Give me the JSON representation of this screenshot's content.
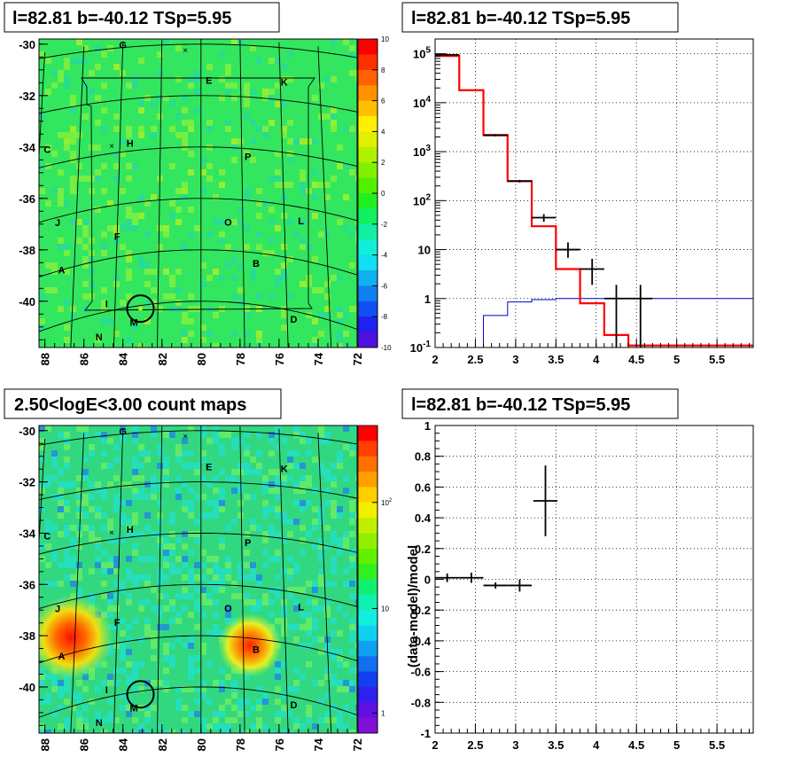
{
  "panels": {
    "tl": {
      "title": "l=82.81 b=-40.12 TSp=5.95"
    },
    "tr": {
      "title": "l=82.81 b=-40.12 TSp=5.95"
    },
    "bl": {
      "title": "2.50<logE<3.00 count maps"
    },
    "br": {
      "title": "l=82.81 b=-40.12 TSp=5.95",
      "ylabel": "(data-model)/model"
    }
  },
  "map_axes": {
    "x_ticks": [
      "88",
      "86",
      "84",
      "82",
      "80",
      "78",
      "76",
      "74",
      "72"
    ],
    "y_ticks": [
      "-30",
      "-32",
      "-34",
      "-36",
      "-38",
      "-40"
    ]
  },
  "source_labels": [
    {
      "id": "G",
      "l": 84.0,
      "b": -29.9
    },
    {
      "id": "E",
      "l": 79.6,
      "b": -31.4
    },
    {
      "id": "K",
      "l": 75.8,
      "b": -31.3
    },
    {
      "id": "C",
      "l": 87.6,
      "b": -33.4
    },
    {
      "id": "H",
      "l": 83.5,
      "b": -33.7
    },
    {
      "id": "P",
      "l": 77.7,
      "b": -34.3
    },
    {
      "id": "J",
      "l": 86.9,
      "b": -36.2
    },
    {
      "id": "L",
      "l": 75.2,
      "b": -36.5
    },
    {
      "id": "F",
      "l": 84.0,
      "b": -37.2
    },
    {
      "id": "O",
      "l": 78.7,
      "b": -36.9
    },
    {
      "id": "A",
      "l": 86.6,
      "b": -38.0
    },
    {
      "id": "B",
      "l": 77.4,
      "b": -38.4
    },
    {
      "id": "I",
      "l": 84.4,
      "b": -39.7
    },
    {
      "id": "D",
      "l": 75.7,
      "b": -40.3
    },
    {
      "id": "M",
      "l": 83.1,
      "b": -40.6
    },
    {
      "id": "N",
      "l": 84.7,
      "b": -40.9
    }
  ],
  "crosses": [
    {
      "l": 80.8,
      "b": -30.2
    },
    {
      "l": 84.4,
      "b": -33.7
    }
  ],
  "target_circle": {
    "l": 82.81,
    "b": -40.12
  },
  "chart_data": [
    {
      "type": "heatmap",
      "title": "l=82.81 b=-40.12 TSp=5.95",
      "xlabel": "",
      "ylabel": "",
      "xlim": [
        88.3,
        72.0
      ],
      "ylim": [
        -41.8,
        -29.8
      ],
      "colorbar": {
        "range": [
          -10,
          10
        ],
        "ticks": [
          "10",
          "8",
          "6",
          "4",
          "2",
          "0",
          "-2",
          "-4",
          "-6",
          "-8",
          "-10"
        ]
      },
      "colors": {
        "background": "#33e660",
        "bright": "#9cf020",
        "dim": "#2ad8a0"
      }
    },
    {
      "type": "line",
      "title": "l=82.81 b=-40.12 TSp=5.95",
      "xlabel": "",
      "ylabel": "",
      "log_y": true,
      "xlim": [
        2,
        5.95
      ],
      "ylim": [
        0.1,
        200000
      ],
      "x_ticks": [
        "2",
        "2.5",
        "3",
        "3.5",
        "4",
        "4.5",
        "5",
        "5.5"
      ],
      "y_ticks": [
        "10^-1",
        "1",
        "10",
        "10^2",
        "10^3",
        "10^4",
        "10^5"
      ],
      "grid": true,
      "model_red": {
        "color": "#ff0000",
        "edges": [
          2,
          2.3,
          2.6,
          2.9,
          3.2,
          3.5,
          3.8,
          4.1,
          4.4,
          5.95
        ],
        "values": [
          90000,
          18000,
          2200,
          250,
          30,
          4,
          0.8,
          0.18,
          0.11
        ]
      },
      "bkg_blue": {
        "color": "#0000cc",
        "edges": [
          2.6,
          2.9,
          3.2,
          3.5,
          3.8,
          4.1,
          5.95
        ],
        "values": [
          0.45,
          0.85,
          0.95,
          1.0,
          1.0,
          1.0
        ]
      },
      "data_points": {
        "color": "#000000",
        "points": [
          {
            "x": 2.15,
            "y": 95000,
            "xerr": 0.15,
            "ylo": 90000,
            "yhi": 100000
          },
          {
            "x": 2.75,
            "y": 2150,
            "xerr": 0.15,
            "ylo": 2050,
            "yhi": 2250
          },
          {
            "x": 3.05,
            "y": 250,
            "xerr": 0.15,
            "ylo": 235,
            "yhi": 265
          },
          {
            "x": 3.35,
            "y": 45,
            "xerr": 0.15,
            "ylo": 37,
            "yhi": 53
          },
          {
            "x": 3.65,
            "y": 10,
            "xerr": 0.15,
            "ylo": 6.8,
            "yhi": 14
          },
          {
            "x": 3.95,
            "y": 4,
            "xerr": 0.15,
            "ylo": 1.9,
            "yhi": 6.5
          },
          {
            "x": 4.25,
            "y": 1.0,
            "xerr": 0.15,
            "ylo": 0.08,
            "yhi": 1.9
          },
          {
            "x": 4.55,
            "y": 1.0,
            "xerr": 0.15,
            "ylo": 0.08,
            "yhi": 1.9
          }
        ]
      }
    },
    {
      "type": "heatmap",
      "title": "2.50<logE<3.00 count maps",
      "xlabel": "",
      "ylabel": "",
      "xlim": [
        88.3,
        72.0
      ],
      "ylim": [
        -41.8,
        -29.8
      ],
      "colorbar": {
        "log": true,
        "ticks": [
          "10^2",
          "10",
          "1"
        ]
      },
      "bright_sources": [
        {
          "id": "A",
          "l": 86.6,
          "b": -38.0
        },
        {
          "id": "B",
          "l": 77.4,
          "b": -38.4
        }
      ],
      "colors": {
        "background": "#32d880",
        "speckle": "#22e0d0",
        "peak": "#ff1000"
      }
    },
    {
      "type": "scatter",
      "title": "l=82.81 b=-40.12 TSp=5.95",
      "xlabel": "",
      "ylabel": "(data-model)/model",
      "xlim": [
        2,
        5.95
      ],
      "ylim": [
        -1,
        1
      ],
      "x_ticks": [
        "2",
        "2.5",
        "3",
        "3.5",
        "4",
        "4.5",
        "5",
        "5.5"
      ],
      "y_ticks": [
        "1",
        "0.8",
        "0.6",
        "0.4",
        "0.2",
        "0",
        "-0.2",
        "-0.4",
        "-0.6",
        "-0.8",
        "-1"
      ],
      "grid": true,
      "points": [
        {
          "x": 2.15,
          "y": 0.01,
          "xerr": 0.15,
          "yerr": 0.005
        },
        {
          "x": 2.45,
          "y": 0.01,
          "xerr": 0.15,
          "yerr": 0.01
        },
        {
          "x": 2.75,
          "y": -0.04,
          "xerr": 0.15,
          "yerr": 0.02
        },
        {
          "x": 3.05,
          "y": -0.04,
          "xerr": 0.15,
          "yerr": 0.04
        },
        {
          "x": 3.37,
          "y": 0.51,
          "xerr": 0.15,
          "yerr": 0.23
        }
      ]
    }
  ]
}
